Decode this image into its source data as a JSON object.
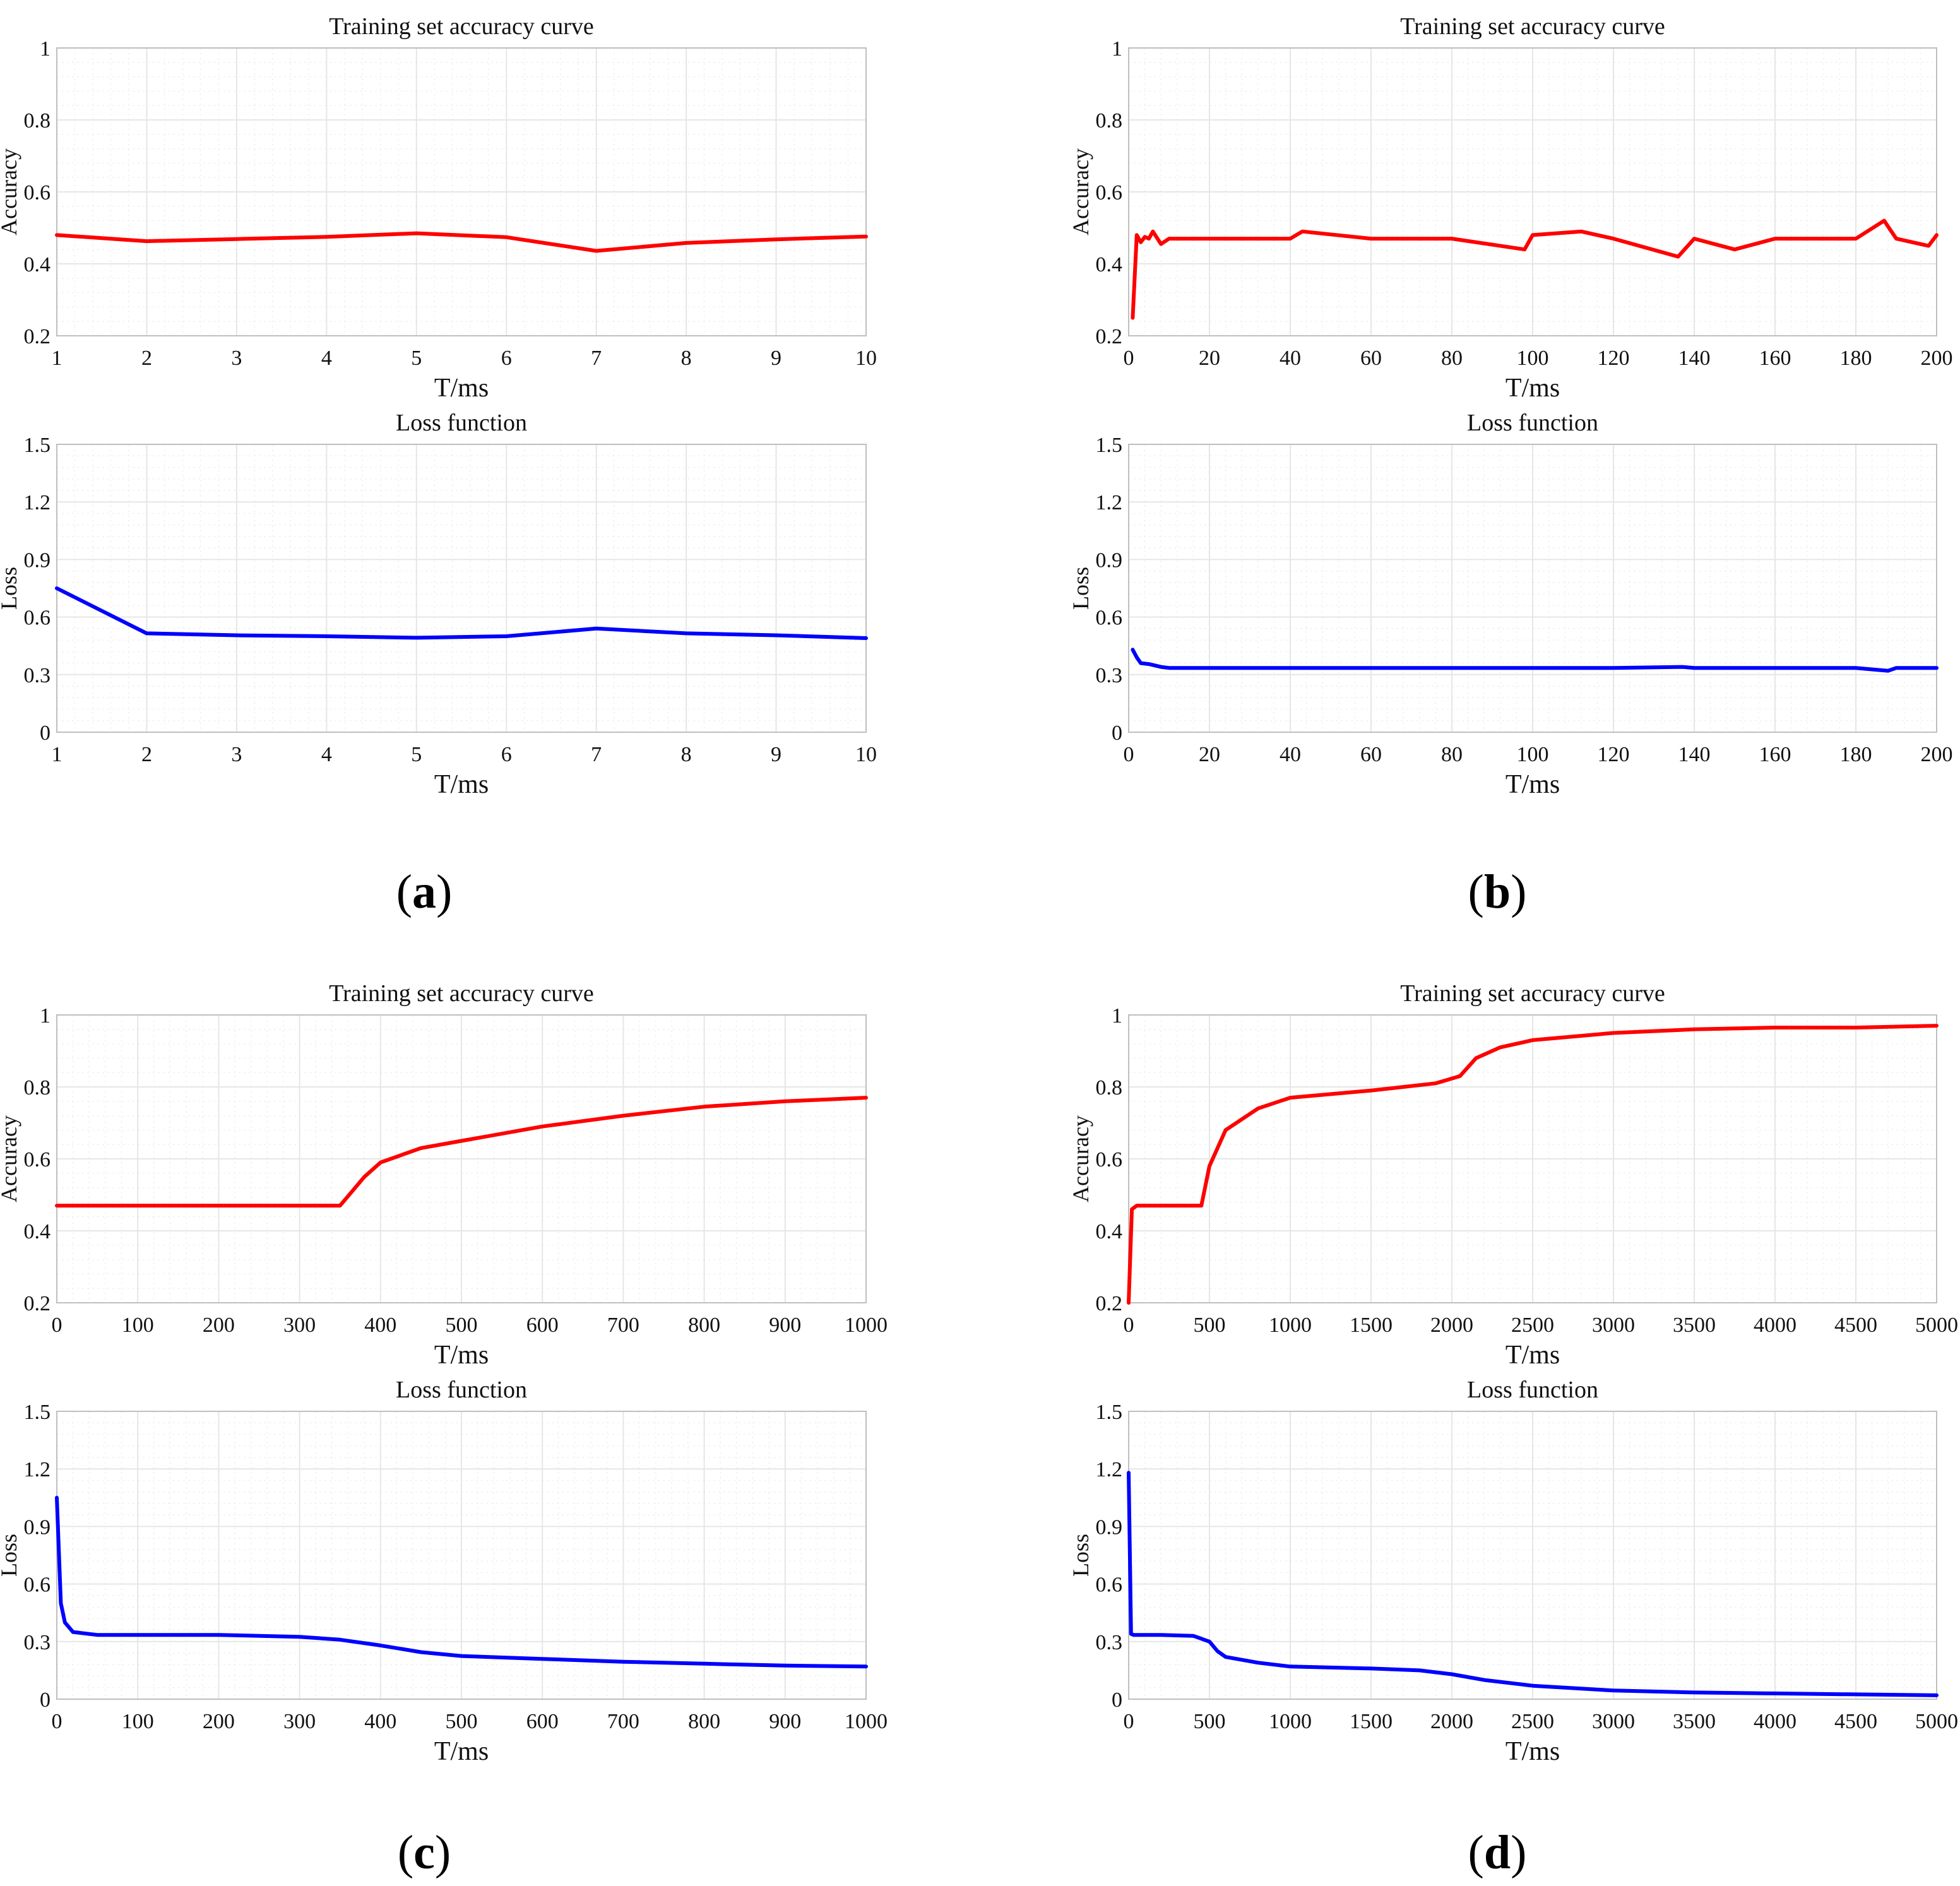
{
  "figure": {
    "captions": [
      "a",
      "b",
      "c",
      "d"
    ]
  },
  "colors": {
    "accuracy": "#ff0000",
    "loss": "#0000ff",
    "grid": "#e6e6e6",
    "axes": "#bfbfbf"
  },
  "chart_data": [
    {
      "panel": "a",
      "chart": "accuracy",
      "type": "line",
      "title": "Training set accuracy curve",
      "xlabel": "T/ms",
      "ylabel": "Accuracy",
      "xlim": [
        1,
        10
      ],
      "ylim": [
        0.2,
        1
      ],
      "xticks": [
        1,
        2,
        3,
        4,
        5,
        6,
        7,
        8,
        9,
        10
      ],
      "yticks": [
        0.2,
        0.4,
        0.6,
        0.8,
        1
      ],
      "ytick_labels": [
        "0.2",
        "0.4",
        "0.6",
        "0.8",
        "1"
      ],
      "series": [
        {
          "name": "Accuracy",
          "color": "#ff0000",
          "x": [
            1,
            2,
            3,
            4,
            5,
            6,
            7,
            8,
            9,
            10
          ],
          "y": [
            0.48,
            0.463,
            0.469,
            0.475,
            0.485,
            0.474,
            0.436,
            0.458,
            0.468,
            0.476
          ]
        }
      ]
    },
    {
      "panel": "a",
      "chart": "loss",
      "type": "line",
      "title": "Loss function",
      "xlabel": "T/ms",
      "ylabel": "Loss",
      "xlim": [
        1,
        10
      ],
      "ylim": [
        0,
        1.5
      ],
      "xticks": [
        1,
        2,
        3,
        4,
        5,
        6,
        7,
        8,
        9,
        10
      ],
      "yticks": [
        0,
        0.3,
        0.6,
        0.9,
        1.2,
        1.5
      ],
      "ytick_labels": [
        "0",
        "0.3",
        "0.6",
        "0.9",
        "1.2",
        "1.5"
      ],
      "series": [
        {
          "name": "Loss",
          "color": "#0000ff",
          "x": [
            1,
            2,
            3,
            4,
            5,
            6,
            7,
            8,
            9,
            10
          ],
          "y": [
            0.75,
            0.515,
            0.505,
            0.5,
            0.492,
            0.5,
            0.54,
            0.515,
            0.505,
            0.49
          ]
        }
      ]
    },
    {
      "panel": "b",
      "chart": "accuracy",
      "type": "line",
      "title": "Training set accuracy curve",
      "xlabel": "T/ms",
      "ylabel": "Accuracy",
      "xlim": [
        0,
        200
      ],
      "ylim": [
        0.2,
        1
      ],
      "xticks": [
        0,
        20,
        40,
        60,
        80,
        100,
        120,
        140,
        160,
        180,
        200
      ],
      "yticks": [
        0.2,
        0.4,
        0.6,
        0.8,
        1
      ],
      "ytick_labels": [
        "0.2",
        "0.4",
        "0.6",
        "0.8",
        "1"
      ],
      "series": [
        {
          "name": "Accuracy",
          "color": "#ff0000",
          "x": [
            1,
            2,
            3,
            4,
            5,
            6,
            8,
            10,
            20,
            40,
            43,
            60,
            80,
            98,
            100,
            112,
            120,
            136,
            140,
            150,
            160,
            180,
            187,
            190,
            198,
            200
          ],
          "y": [
            0.25,
            0.48,
            0.46,
            0.475,
            0.47,
            0.49,
            0.455,
            0.47,
            0.47,
            0.47,
            0.49,
            0.47,
            0.47,
            0.44,
            0.48,
            0.49,
            0.47,
            0.42,
            0.47,
            0.44,
            0.47,
            0.47,
            0.52,
            0.47,
            0.45,
            0.48
          ]
        }
      ]
    },
    {
      "panel": "b",
      "chart": "loss",
      "type": "line",
      "title": "Loss function",
      "xlabel": "T/ms",
      "ylabel": "Loss",
      "xlim": [
        0,
        200
      ],
      "ylim": [
        0,
        1.5
      ],
      "xticks": [
        0,
        20,
        40,
        60,
        80,
        100,
        120,
        140,
        160,
        180,
        200
      ],
      "yticks": [
        0,
        0.3,
        0.6,
        0.9,
        1.2,
        1.5
      ],
      "ytick_labels": [
        "0",
        "0.3",
        "0.6",
        "0.9",
        "1.2",
        "1.5"
      ],
      "series": [
        {
          "name": "Loss",
          "color": "#0000ff",
          "x": [
            1,
            2,
            3,
            5,
            8,
            10,
            20,
            40,
            60,
            80,
            100,
            120,
            137,
            140,
            160,
            180,
            188,
            190,
            200
          ],
          "y": [
            0.43,
            0.39,
            0.36,
            0.355,
            0.34,
            0.335,
            0.335,
            0.335,
            0.335,
            0.335,
            0.335,
            0.335,
            0.34,
            0.335,
            0.335,
            0.335,
            0.32,
            0.335,
            0.335
          ]
        }
      ]
    },
    {
      "panel": "c",
      "chart": "accuracy",
      "type": "line",
      "title": "Training set accuracy curve",
      "xlabel": "T/ms",
      "ylabel": "Accuracy",
      "xlim": [
        0,
        1000
      ],
      "ylim": [
        0.2,
        1
      ],
      "xticks": [
        0,
        100,
        200,
        300,
        400,
        500,
        600,
        700,
        800,
        900,
        1000
      ],
      "yticks": [
        0.2,
        0.4,
        0.6,
        0.8,
        1
      ],
      "ytick_labels": [
        "0.2",
        "0.4",
        "0.6",
        "0.8",
        "1"
      ],
      "series": [
        {
          "name": "Accuracy",
          "color": "#ff0000",
          "x": [
            0,
            100,
            200,
            300,
            350,
            380,
            400,
            450,
            500,
            600,
            700,
            800,
            900,
            1000
          ],
          "y": [
            0.47,
            0.47,
            0.47,
            0.47,
            0.47,
            0.55,
            0.59,
            0.63,
            0.65,
            0.69,
            0.72,
            0.745,
            0.76,
            0.77
          ]
        }
      ]
    },
    {
      "panel": "c",
      "chart": "loss",
      "type": "line",
      "title": "Loss function",
      "xlabel": "T/ms",
      "ylabel": "Loss",
      "xlim": [
        0,
        1000
      ],
      "ylim": [
        0,
        1.5
      ],
      "xticks": [
        0,
        100,
        200,
        300,
        400,
        500,
        600,
        700,
        800,
        900,
        1000
      ],
      "yticks": [
        0,
        0.3,
        0.6,
        0.9,
        1.2,
        1.5
      ],
      "ytick_labels": [
        "0",
        "0.3",
        "0.6",
        "0.9",
        "1.2",
        "1.5"
      ],
      "series": [
        {
          "name": "Loss",
          "color": "#0000ff",
          "x": [
            0,
            5,
            10,
            20,
            50,
            100,
            200,
            300,
            350,
            400,
            450,
            500,
            600,
            700,
            800,
            900,
            1000
          ],
          "y": [
            1.05,
            0.5,
            0.4,
            0.35,
            0.335,
            0.335,
            0.335,
            0.325,
            0.31,
            0.28,
            0.245,
            0.225,
            0.21,
            0.195,
            0.185,
            0.175,
            0.17
          ]
        }
      ]
    },
    {
      "panel": "d",
      "chart": "accuracy",
      "type": "line",
      "title": "Training set accuracy curve",
      "xlabel": "T/ms",
      "ylabel": "Accuracy",
      "xlim": [
        0,
        5000
      ],
      "ylim": [
        0.2,
        1
      ],
      "xticks": [
        0,
        500,
        1000,
        1500,
        2000,
        2500,
        3000,
        3500,
        4000,
        4500,
        5000
      ],
      "yticks": [
        0.2,
        0.4,
        0.6,
        0.8,
        1
      ],
      "ytick_labels": [
        "0.2",
        "0.4",
        "0.6",
        "0.8",
        "1"
      ],
      "series": [
        {
          "name": "Accuracy",
          "color": "#ff0000",
          "x": [
            0,
            20,
            50,
            200,
            450,
            500,
            600,
            800,
            1000,
            1500,
            1900,
            2050,
            2150,
            2300,
            2500,
            3000,
            3500,
            4000,
            4500,
            5000
          ],
          "y": [
            0.2,
            0.46,
            0.47,
            0.47,
            0.47,
            0.58,
            0.68,
            0.74,
            0.77,
            0.79,
            0.81,
            0.83,
            0.88,
            0.91,
            0.93,
            0.95,
            0.96,
            0.965,
            0.965,
            0.97
          ]
        }
      ]
    },
    {
      "panel": "d",
      "chart": "loss",
      "type": "line",
      "title": "Loss function",
      "xlabel": "T/ms",
      "ylabel": "Loss",
      "xlim": [
        0,
        5000
      ],
      "ylim": [
        0,
        1.5
      ],
      "xticks": [
        0,
        500,
        1000,
        1500,
        2000,
        2500,
        3000,
        3500,
        4000,
        4500,
        5000
      ],
      "yticks": [
        0,
        0.3,
        0.6,
        0.9,
        1.2,
        1.5
      ],
      "ytick_labels": [
        "0",
        "0.3",
        "0.6",
        "0.9",
        "1.2",
        "1.5"
      ],
      "series": [
        {
          "name": "Loss",
          "color": "#0000ff",
          "x": [
            0,
            15,
            30,
            200,
            400,
            500,
            550,
            600,
            800,
            1000,
            1500,
            1800,
            2000,
            2200,
            2500,
            3000,
            3500,
            4000,
            4500,
            5000
          ],
          "y": [
            1.18,
            0.34,
            0.335,
            0.335,
            0.33,
            0.3,
            0.25,
            0.22,
            0.19,
            0.17,
            0.16,
            0.15,
            0.13,
            0.1,
            0.07,
            0.045,
            0.035,
            0.03,
            0.025,
            0.02
          ]
        }
      ]
    }
  ]
}
